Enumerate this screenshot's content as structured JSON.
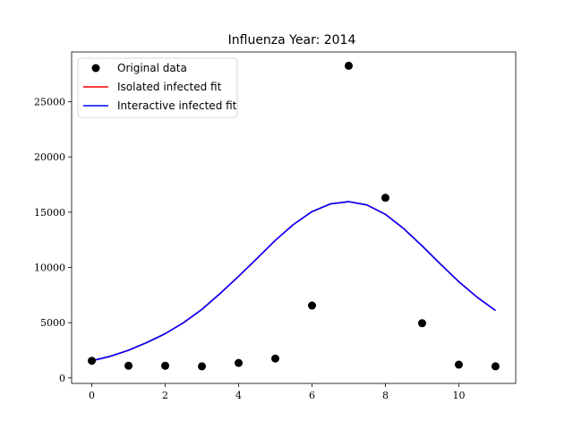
{
  "chart_data": {
    "type": "scatter",
    "title": "Influenza Year: 2014",
    "xlabel": "",
    "ylabel": "",
    "xlim": [
      -0.55,
      11.55
    ],
    "ylim": [
      -500,
      29500
    ],
    "x_ticks": [
      0,
      2,
      4,
      6,
      8,
      10
    ],
    "y_ticks": [
      0,
      5000,
      10000,
      15000,
      20000,
      25000
    ],
    "grid": false,
    "legend_position": "top-left",
    "series": [
      {
        "name": "Original data",
        "kind": "points",
        "color": "#000000",
        "x": [
          0,
          1,
          2,
          3,
          4,
          5,
          6,
          7,
          8,
          9,
          10,
          11
        ],
        "y": [
          1550,
          1100,
          1100,
          1050,
          1350,
          1750,
          6550,
          28250,
          16300,
          4950,
          1200,
          1050
        ]
      },
      {
        "name": "Isolated infected fit",
        "kind": "line",
        "color": "#ff0000",
        "x": [
          0,
          0.5,
          1,
          1.5,
          2,
          2.5,
          3,
          3.5,
          4,
          4.5,
          5,
          5.5,
          6,
          6.5,
          7,
          7.5,
          8,
          8.5,
          9,
          9.5,
          10,
          10.5,
          11
        ],
        "y": [
          1550,
          1950,
          2500,
          3200,
          4000,
          5000,
          6200,
          7650,
          9200,
          10800,
          12450,
          13900,
          15050,
          15750,
          15950,
          15650,
          14800,
          13500,
          11950,
          10300,
          8700,
          7300,
          6100
        ]
      },
      {
        "name": "Interactive infected fit",
        "kind": "line",
        "color": "#0000ff",
        "x": [
          0,
          0.5,
          1,
          1.5,
          2,
          2.5,
          3,
          3.5,
          4,
          4.5,
          5,
          5.5,
          6,
          6.5,
          7,
          7.5,
          8,
          8.5,
          9,
          9.5,
          10,
          10.5,
          11
        ],
        "y": [
          1550,
          1950,
          2500,
          3200,
          4000,
          5000,
          6200,
          7650,
          9200,
          10800,
          12450,
          13900,
          15050,
          15750,
          15950,
          15650,
          14800,
          13500,
          11950,
          10300,
          8700,
          7300,
          6100
        ]
      }
    ]
  }
}
